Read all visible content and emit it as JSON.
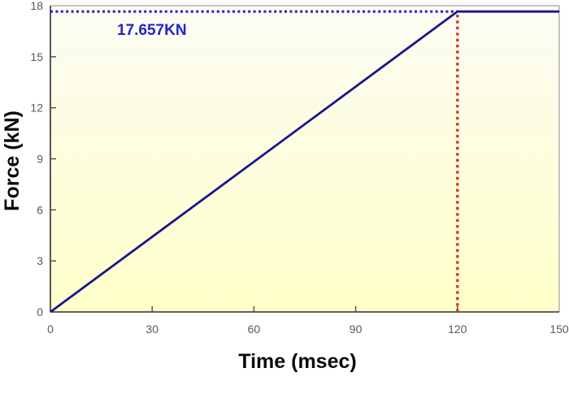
{
  "chart_data": {
    "type": "line",
    "title": "",
    "xlabel": "Time (msec)",
    "ylabel": "Force (kN)",
    "xlim": [
      0,
      150
    ],
    "ylim": [
      0,
      18
    ],
    "x_ticks": [
      0,
      30,
      60,
      90,
      120,
      150
    ],
    "x_tick_labels": [
      "0",
      "30",
      "60",
      "90",
      "120",
      "150"
    ],
    "y_ticks": [
      0,
      3,
      6,
      9,
      12,
      15,
      18
    ],
    "y_tick_labels": [
      "0",
      "3",
      "6",
      "9",
      "12",
      "15",
      "18"
    ],
    "grid": false,
    "legend": false,
    "plot_bg_gradient_top": "#fcfcf4",
    "plot_bg_gradient_bottom": "#ffffc9",
    "series": [
      {
        "name": "force-vs-time",
        "color": "#17178e",
        "style": "solid",
        "x": [
          0,
          120,
          150
        ],
        "y": [
          0,
          17.657,
          17.657
        ]
      }
    ],
    "reference_lines": [
      {
        "name": "peak-force-level",
        "orientation": "horizontal",
        "value": 17.657,
        "x_extent": [
          0,
          120
        ],
        "color": "#2424cc",
        "style": "dotted"
      },
      {
        "name": "ramp-end-time",
        "orientation": "vertical",
        "value": 120,
        "y_extent": [
          0,
          17.657
        ],
        "color": "#e13222",
        "style": "dotted"
      }
    ],
    "annotation": {
      "text": "17.657KN",
      "color": "#2424cc"
    },
    "axis_colors": {
      "left_bottom": "#2f2f2f",
      "top_right": "#b2b2b2",
      "tick": "#4a4a4a",
      "tick_label": "#595959"
    }
  }
}
